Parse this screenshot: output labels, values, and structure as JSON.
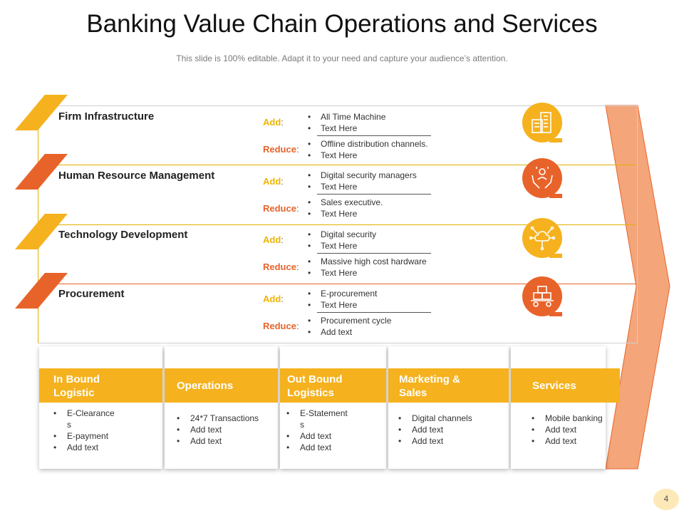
{
  "header": {
    "title": "Banking Value Chain Operations and Services",
    "subtitle": "This slide is 100% editable. Adapt it to your need and capture your audience’s attention."
  },
  "labels": {
    "add": "Add",
    "reduce": "Reduce",
    "colon": ":"
  },
  "colors": {
    "yellow": "#f5b21e",
    "orange": "#e8632a",
    "arrow": "#f4a57a"
  },
  "support_rows": [
    {
      "title": "Firm Infrastructure",
      "icon": "building-icon",
      "add": [
        "All Time Machine",
        "Text Here"
      ],
      "reduce": [
        "Offline distribution channels.",
        "Text Here"
      ]
    },
    {
      "title": "Human Resource Management",
      "icon": "hands-person-icon",
      "add": [
        "Digital security managers",
        "Text Here"
      ],
      "reduce": [
        "Sales executive.",
        "Text Here"
      ]
    },
    {
      "title": "Technology Development",
      "icon": "cloud-network-icon",
      "add": [
        "Digital security",
        "Text Here"
      ],
      "reduce": [
        "Massive high cost hardware",
        "Text Here"
      ]
    },
    {
      "title": "Procurement",
      "icon": "cart-boxes-icon",
      "add": [
        "E-procurement",
        "Text Here"
      ],
      "reduce": [
        "Procurement cycle",
        "Add text"
      ]
    }
  ],
  "primary": [
    {
      "title_lines": [
        "In Bound",
        "Logistic"
      ],
      "items": [
        "E-Clearances",
        "E-payment",
        "Add text"
      ]
    },
    {
      "title_lines": [
        "Operations"
      ],
      "items": [
        "24*7 Transactions",
        "Add text",
        "Add text"
      ]
    },
    {
      "title_lines": [
        "Out Bound",
        "Logistics"
      ],
      "items": [
        "E-Statements",
        "Add text",
        "Add text"
      ]
    },
    {
      "title_lines": [
        "Marketing &",
        "Sales"
      ],
      "items": [
        "Digital channels",
        "Add text",
        "Add text"
      ]
    },
    {
      "title_lines": [
        "Services"
      ],
      "items": [
        "Mobile banking",
        "Add text",
        "Add text"
      ]
    }
  ],
  "footer": {
    "page_number": "4"
  }
}
